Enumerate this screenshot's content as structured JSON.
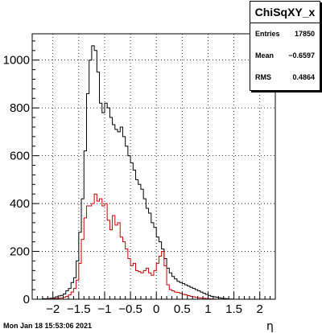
{
  "chart_data": {
    "type": "histogram",
    "title": "",
    "xlabel": "η",
    "ylabel": "",
    "xlim": [
      -2.4,
      2.3
    ],
    "ylim": [
      0,
      1110
    ],
    "grid": true,
    "bin_width": 0.05,
    "x_start": -2.4,
    "xticks": [
      "−2",
      "−1.5",
      "−1",
      "−0.5",
      "0",
      "0.5",
      "1",
      "1.5",
      "2"
    ],
    "xtick_values": [
      -2,
      -1.5,
      -1,
      -0.5,
      0,
      0.5,
      1,
      1.5,
      2
    ],
    "yticks": [
      "0",
      "200",
      "400",
      "600",
      "800",
      "1000"
    ],
    "ytick_values": [
      0,
      200,
      400,
      600,
      800,
      1000
    ],
    "series": [
      {
        "color": "#000000",
        "values": [
          0,
          0,
          0,
          0,
          2,
          2,
          3,
          4,
          6,
          10,
          14,
          16,
          22,
          35,
          45,
          70,
          90,
          160,
          280,
          420,
          620,
          860,
          1000,
          1060,
          1040,
          950,
          820,
          780,
          820,
          800,
          760,
          730,
          710,
          700,
          720,
          680,
          640,
          600,
          570,
          540,
          500,
          480,
          460,
          420,
          380,
          360,
          320,
          300,
          260,
          240,
          210,
          170,
          130,
          110,
          95,
          85,
          75,
          70,
          65,
          60,
          55,
          50,
          45,
          40,
          35,
          30,
          25,
          20,
          16,
          12,
          10,
          8,
          6,
          4,
          3,
          2,
          1,
          1,
          0,
          0,
          0,
          0,
          0,
          0,
          0,
          0,
          0,
          0,
          0,
          0,
          0,
          0,
          0,
          0
        ]
      },
      {
        "color": "#cc0000",
        "values": [
          0,
          0,
          0,
          0,
          0,
          0,
          1,
          1,
          2,
          3,
          4,
          5,
          8,
          12,
          18,
          30,
          45,
          80,
          150,
          250,
          340,
          390,
          390,
          400,
          440,
          410,
          420,
          390,
          400,
          330,
          290,
          350,
          310,
          320,
          260,
          240,
          210,
          170,
          140,
          150,
          120,
          115,
          110,
          120,
          130,
          110,
          100,
          120,
          150,
          180,
          200,
          140,
          60,
          40,
          35,
          30,
          28,
          25,
          20,
          18,
          15,
          12,
          10,
          8,
          6,
          5,
          4,
          3,
          2,
          1,
          1,
          0,
          0,
          0,
          0,
          0,
          0,
          0,
          0,
          0,
          0,
          0,
          0,
          0,
          0,
          0,
          0,
          0,
          0,
          0,
          0,
          0,
          0,
          0
        ]
      }
    ]
  },
  "stats": {
    "title": "ChiSqXY_x",
    "rows": [
      {
        "label": "Entries",
        "value": "17850"
      },
      {
        "label": "Mean",
        "value": "−0.6597"
      },
      {
        "label": "RMS",
        "value": "0.4864"
      }
    ]
  },
  "footer": {
    "timestamp": "Mon Jan 18 15:53:06 2021"
  }
}
